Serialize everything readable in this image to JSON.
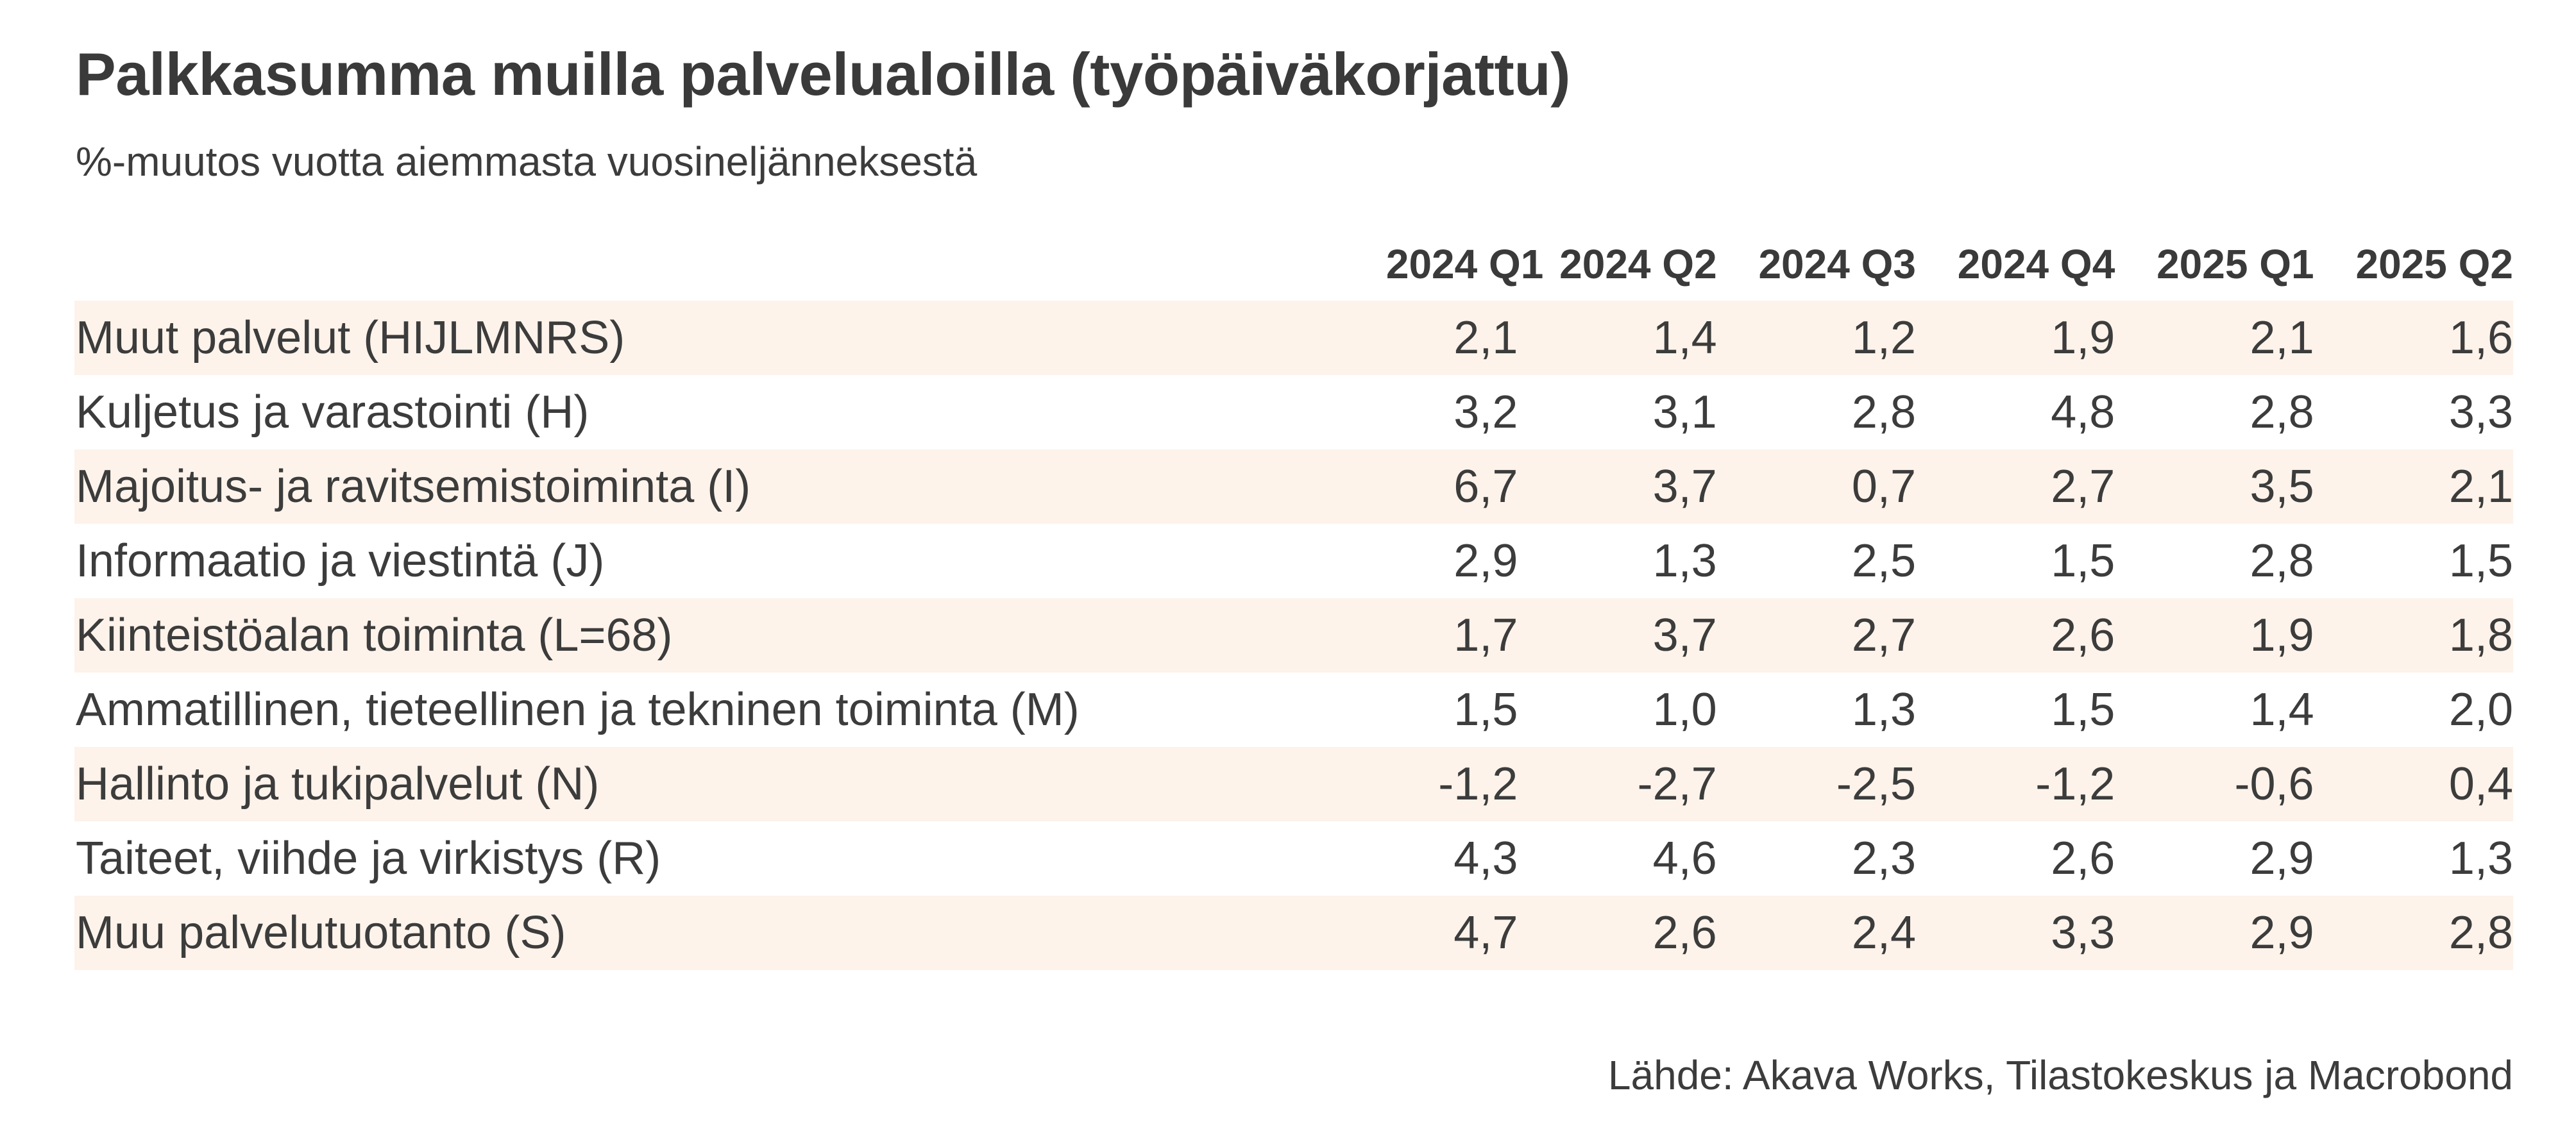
{
  "title": "Palkkasumma muilla palvelualoilla (työpäiväkorjattu)",
  "subtitle": "%-muutos vuotta aiemmasta vuosineljänneksestä",
  "table": {
    "columns": [
      "2024 Q1",
      "2024 Q2",
      "2024 Q3",
      "2024 Q4",
      "2025 Q1",
      "2025 Q2"
    ],
    "rows": [
      {
        "label": "Muut palvelut (HIJLMNRS)",
        "values": [
          "2,1",
          "1,4",
          "1,2",
          "1,9",
          "2,1",
          "1,6"
        ]
      },
      {
        "label": "Kuljetus ja varastointi (H)",
        "values": [
          "3,2",
          "3,1",
          "2,8",
          "4,8",
          "2,8",
          "3,3"
        ]
      },
      {
        "label": "Majoitus- ja ravitsemistoiminta (I)",
        "values": [
          "6,7",
          "3,7",
          "0,7",
          "2,7",
          "3,5",
          "2,1"
        ]
      },
      {
        "label": "Informaatio ja viestintä (J)",
        "values": [
          "2,9",
          "1,3",
          "2,5",
          "1,5",
          "2,8",
          "1,5"
        ]
      },
      {
        "label": "Kiinteistöalan toiminta (L=68)",
        "values": [
          "1,7",
          "3,7",
          "2,7",
          "2,6",
          "1,9",
          "1,8"
        ]
      },
      {
        "label": "Ammatillinen, tieteellinen ja tekninen toiminta (M)",
        "values": [
          "1,5",
          "1,0",
          "1,3",
          "1,5",
          "1,4",
          "2,0"
        ]
      },
      {
        "label": "Hallinto ja tukipalvelut (N)",
        "values": [
          "-1,2",
          "-2,7",
          "-2,5",
          "-1,2",
          "-0,6",
          "0,4"
        ]
      },
      {
        "label": "Taiteet, viihde ja virkistys (R)",
        "values": [
          "4,3",
          "4,6",
          "2,3",
          "2,6",
          "2,9",
          "1,3"
        ]
      },
      {
        "label": "Muu palvelutuotanto (S)",
        "values": [
          "4,7",
          "2,6",
          "2,4",
          "3,3",
          "2,9",
          "2,8"
        ]
      }
    ]
  },
  "source": "Lähde: Akava Works, Tilastokeskus ja Macrobond",
  "colors": {
    "stripe": "#fdf3ea",
    "text": "#3c3c3c"
  }
}
